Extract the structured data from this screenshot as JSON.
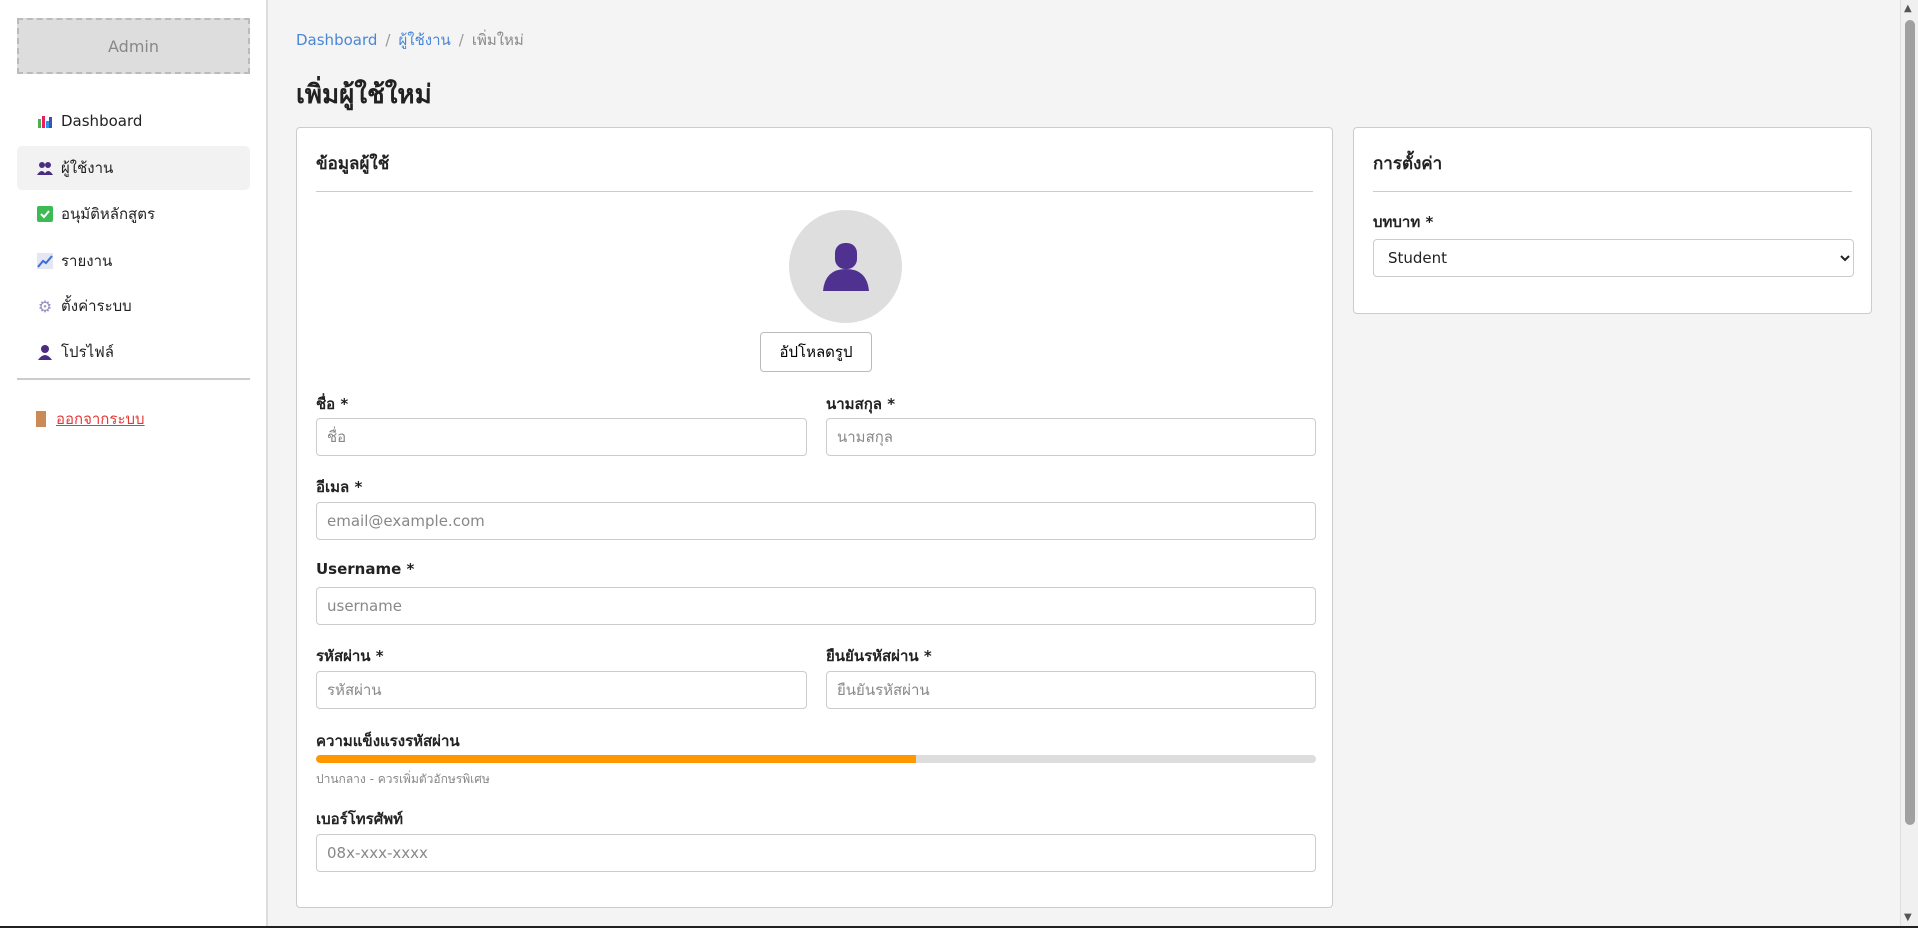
{
  "sidebar": {
    "logo": "Admin",
    "items": [
      {
        "label": "Dashboard",
        "icon": "bar-chart-icon"
      },
      {
        "label": "ผู้ใช้งาน",
        "icon": "users-icon",
        "active": true
      },
      {
        "label": "อนุมัติหลักสูตร",
        "icon": "check-box-icon"
      },
      {
        "label": "รายงาน",
        "icon": "line-chart-icon"
      },
      {
        "label": "ตั้งค่าระบบ",
        "icon": "gear-icon"
      },
      {
        "label": "โปรไฟล์",
        "icon": "user-icon"
      }
    ],
    "logout": {
      "label": "ออกจากระบบ",
      "icon": "door-icon"
    }
  },
  "breadcrumb": [
    "Dashboard",
    "ผู้ใช้งาน",
    "เพิ่มใหม่"
  ],
  "page_title": "เพิ่มผู้ใช้ใหม่",
  "user_card": {
    "title": "ข้อมูลผู้ใช้",
    "upload_label": "อัปโหลดรูป",
    "first_name": {
      "label": "ชื่อ *",
      "placeholder": "ชื่อ"
    },
    "last_name": {
      "label": "นามสกุล *",
      "placeholder": "นามสกุล"
    },
    "email": {
      "label": "อีเมล *",
      "placeholder": "email@example.com"
    },
    "username": {
      "label": "Username *",
      "placeholder": "username"
    },
    "password": {
      "label": "รหัสผ่าน *",
      "placeholder": "รหัสผ่าน"
    },
    "confirm_password": {
      "label": "ยืนยันรหัสผ่าน *",
      "placeholder": "ยืนยันรหัสผ่าน"
    },
    "strength": {
      "label": "ความแข็งแรงรหัสผ่าน",
      "percent": 60,
      "color": "#ff9800",
      "hint": "ปานกลาง - ควรเพิ่มตัวอักษรพิเศษ"
    },
    "phone": {
      "label": "เบอร์โทรศัพท์",
      "placeholder": "08x-xxx-xxxx"
    }
  },
  "settings_card": {
    "title": "การตั้งค่า",
    "role": {
      "label": "บทบาท *",
      "value": "Student"
    }
  }
}
